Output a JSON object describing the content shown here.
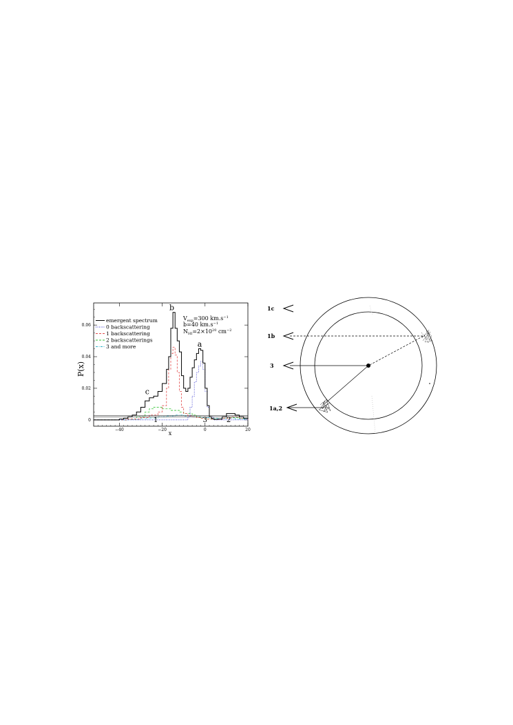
{
  "chart_data": {
    "type": "line",
    "xlabel": "x",
    "ylabel": "P(x)",
    "xlim": [
      -52,
      20
    ],
    "ylim": [
      -0.004,
      0.074
    ],
    "x_ticks": [
      -40,
      -20,
      0,
      20
    ],
    "x_tick_labels": [
      "−40",
      "−20",
      "0",
      "20"
    ],
    "y_ticks": [
      0,
      0.02,
      0.04,
      0.06
    ],
    "y_tick_labels": [
      "0",
      "0.02",
      "0.04",
      "0.06"
    ],
    "legend_position": "top-left",
    "parameters": {
      "line1_a": "V",
      "line1_sub": "exp",
      "line1_b": "=300  km.s",
      "line2": "b=40  km.s",
      "exp_minus1": "−1",
      "line3_a": "N",
      "line3_sub": "HI",
      "line3_b": "=2×10",
      "line3_exp": "20",
      "line3_c": "  cm",
      "line3_exp2": "−2"
    },
    "peak_labels": [
      {
        "label": "a",
        "x": -2.5,
        "y": 0.0455
      },
      {
        "label": "b",
        "x": -15.5,
        "y": 0.0685
      },
      {
        "label": "c",
        "x": -27,
        "y": 0.0155
      }
    ],
    "region_labels": [
      {
        "label": "1",
        "x": -23
      },
      {
        "label": "3",
        "x": 0
      },
      {
        "label": "2",
        "x": 11
      }
    ],
    "series": [
      {
        "name": "emergent spectrum",
        "style": "solid",
        "color": "#000000",
        "x": [
          -52,
          -40,
          -38,
          -36,
          -34,
          -32,
          -30,
          -28,
          -26,
          -24,
          -22,
          -20,
          -18,
          -17,
          -16,
          -15,
          -14,
          -13,
          -12,
          -11,
          -10,
          -9,
          -8,
          -7,
          -6,
          -5,
          -4,
          -3,
          -2,
          -1,
          0,
          1,
          2,
          3,
          4,
          6,
          8,
          10,
          12,
          14,
          16,
          18,
          20
        ],
        "y": [
          0,
          0.0005,
          0.001,
          0.002,
          0.003,
          0.005,
          0.008,
          0.012,
          0.014,
          0.015,
          0.018,
          0.023,
          0.032,
          0.04,
          0.058,
          0.068,
          0.058,
          0.05,
          0.043,
          0.028,
          0.02,
          0.018,
          0.02,
          0.027,
          0.033,
          0.038,
          0.042,
          0.045,
          0.044,
          0.036,
          0.02,
          0.009,
          0.002,
          0.0008,
          0.0003,
          0.0005,
          0.002,
          0.004,
          0.004,
          0.003,
          0.002,
          0.001,
          0.0005
        ]
      },
      {
        "name": "0 backscattering",
        "style": "dotted",
        "color": "#2b2bcc",
        "x": [
          -52,
          -20,
          -10,
          -8,
          -7,
          -6,
          -5,
          -4,
          -3,
          -2,
          -1,
          0,
          1,
          2,
          4,
          8,
          20
        ],
        "y": [
          0,
          0,
          0,
          0.002,
          0.008,
          0.015,
          0.024,
          0.03,
          0.034,
          0.037,
          0.032,
          0.018,
          0.008,
          0.002,
          0,
          0,
          0
        ]
      },
      {
        "name": "1 backscattering",
        "style": "dashed",
        "color": "#e24a4a",
        "x": [
          -52,
          -36,
          -30,
          -26,
          -22,
          -20,
          -18,
          -17,
          -16,
          -15,
          -14,
          -13,
          -12,
          -11,
          -10,
          -8,
          -6,
          -4,
          -2,
          0,
          4,
          8,
          12,
          16,
          20
        ],
        "y": [
          0,
          0.0005,
          0.0015,
          0.003,
          0.005,
          0.009,
          0.02,
          0.032,
          0.042,
          0.046,
          0.041,
          0.03,
          0.018,
          0.008,
          0.004,
          0.0025,
          0.002,
          0.0015,
          0.001,
          0.0005,
          0.0003,
          0.001,
          0.002,
          0.001,
          0
        ]
      },
      {
        "name": "2 backscatterings",
        "style": "dashed",
        "color": "#33c233",
        "x": [
          -52,
          -36,
          -32,
          -28,
          -26,
          -24,
          -22,
          -20,
          -18,
          -16,
          -14,
          -12,
          -10,
          -8,
          -6,
          -4,
          -2,
          0,
          4,
          8,
          12,
          16,
          20
        ],
        "y": [
          0,
          0.0005,
          0.002,
          0.005,
          0.007,
          0.008,
          0.008,
          0.007,
          0.007,
          0.006,
          0.006,
          0.005,
          0.004,
          0.004,
          0.003,
          0.002,
          0.001,
          0.0005,
          0.0005,
          0.001,
          0.0015,
          0.001,
          0
        ]
      },
      {
        "name": "3 and more",
        "style": "dashdot",
        "color": "#2fb3c8",
        "x": [
          -52,
          -36,
          -30,
          -26,
          -22,
          -18,
          -14,
          -10,
          -6,
          -2,
          2,
          6,
          10,
          14,
          20
        ],
        "y": [
          0,
          0.0003,
          0.0008,
          0.0012,
          0.002,
          0.0025,
          0.003,
          0.0025,
          0.002,
          0.0015,
          0.001,
          0.0008,
          0.001,
          0.0005,
          0
        ]
      }
    ]
  },
  "diagram": {
    "labels": [
      {
        "text": "1c"
      },
      {
        "text": "1b"
      },
      {
        "text": "3"
      },
      {
        "text": "1a,2"
      }
    ]
  }
}
